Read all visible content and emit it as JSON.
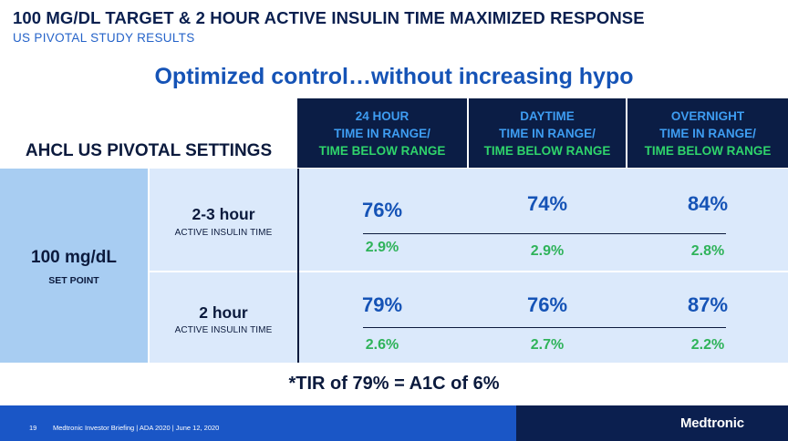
{
  "header": {
    "title": "100 MG/DL TARGET & 2 HOUR ACTIVE INSULIN TIME MAXIMIZED RESPONSE",
    "subtitle": "US PIVOTAL STUDY RESULTS"
  },
  "headline": "Optimized control…without increasing hypo",
  "table": {
    "settings_label": "AHCL US PIVOTAL SETTINGS",
    "columns": [
      {
        "line1": "24 HOUR",
        "line2": "TIME IN RANGE/",
        "line3": "TIME BELOW RANGE"
      },
      {
        "line1": "DAYTIME",
        "line2": "TIME IN RANGE/",
        "line3": "TIME BELOW RANGE"
      },
      {
        "line1": "OVERNIGHT",
        "line2": "TIME IN RANGE/",
        "line3": "TIME BELOW RANGE"
      }
    ],
    "setpoint": {
      "value": "100 mg/dL",
      "label": "SET POINT"
    },
    "rows": [
      {
        "title": "2-3 hour",
        "subtitle": "ACTIVE INSULIN TIME",
        "cells": [
          {
            "tir": "76%",
            "tbr": "2.9%"
          },
          {
            "tir": "74%",
            "tbr": "2.9%"
          },
          {
            "tir": "84%",
            "tbr": "2.8%"
          }
        ]
      },
      {
        "title": "2 hour",
        "subtitle": "ACTIVE INSULIN TIME",
        "cells": [
          {
            "tir": "79%",
            "tbr": "2.6%"
          },
          {
            "tir": "76%",
            "tbr": "2.7%"
          },
          {
            "tir": "87%",
            "tbr": "2.2%"
          }
        ]
      }
    ]
  },
  "footnote": "*TIR of 79% = A1C of 6%",
  "footer": {
    "page_number": "19",
    "text": "Medtronic Investor Briefing | ADA 2020 | June 12, 2020",
    "logo": "Medtronic"
  },
  "colors": {
    "navy": "#0b1d45",
    "header_blue": "#3e9df2",
    "tir_blue": "#1553b6",
    "tbr_green": "#2fb35a",
    "cell_bg": "#dbe9fb",
    "setpoint_bg": "#a8cdf2",
    "footer_blue": "#1a56c6"
  }
}
